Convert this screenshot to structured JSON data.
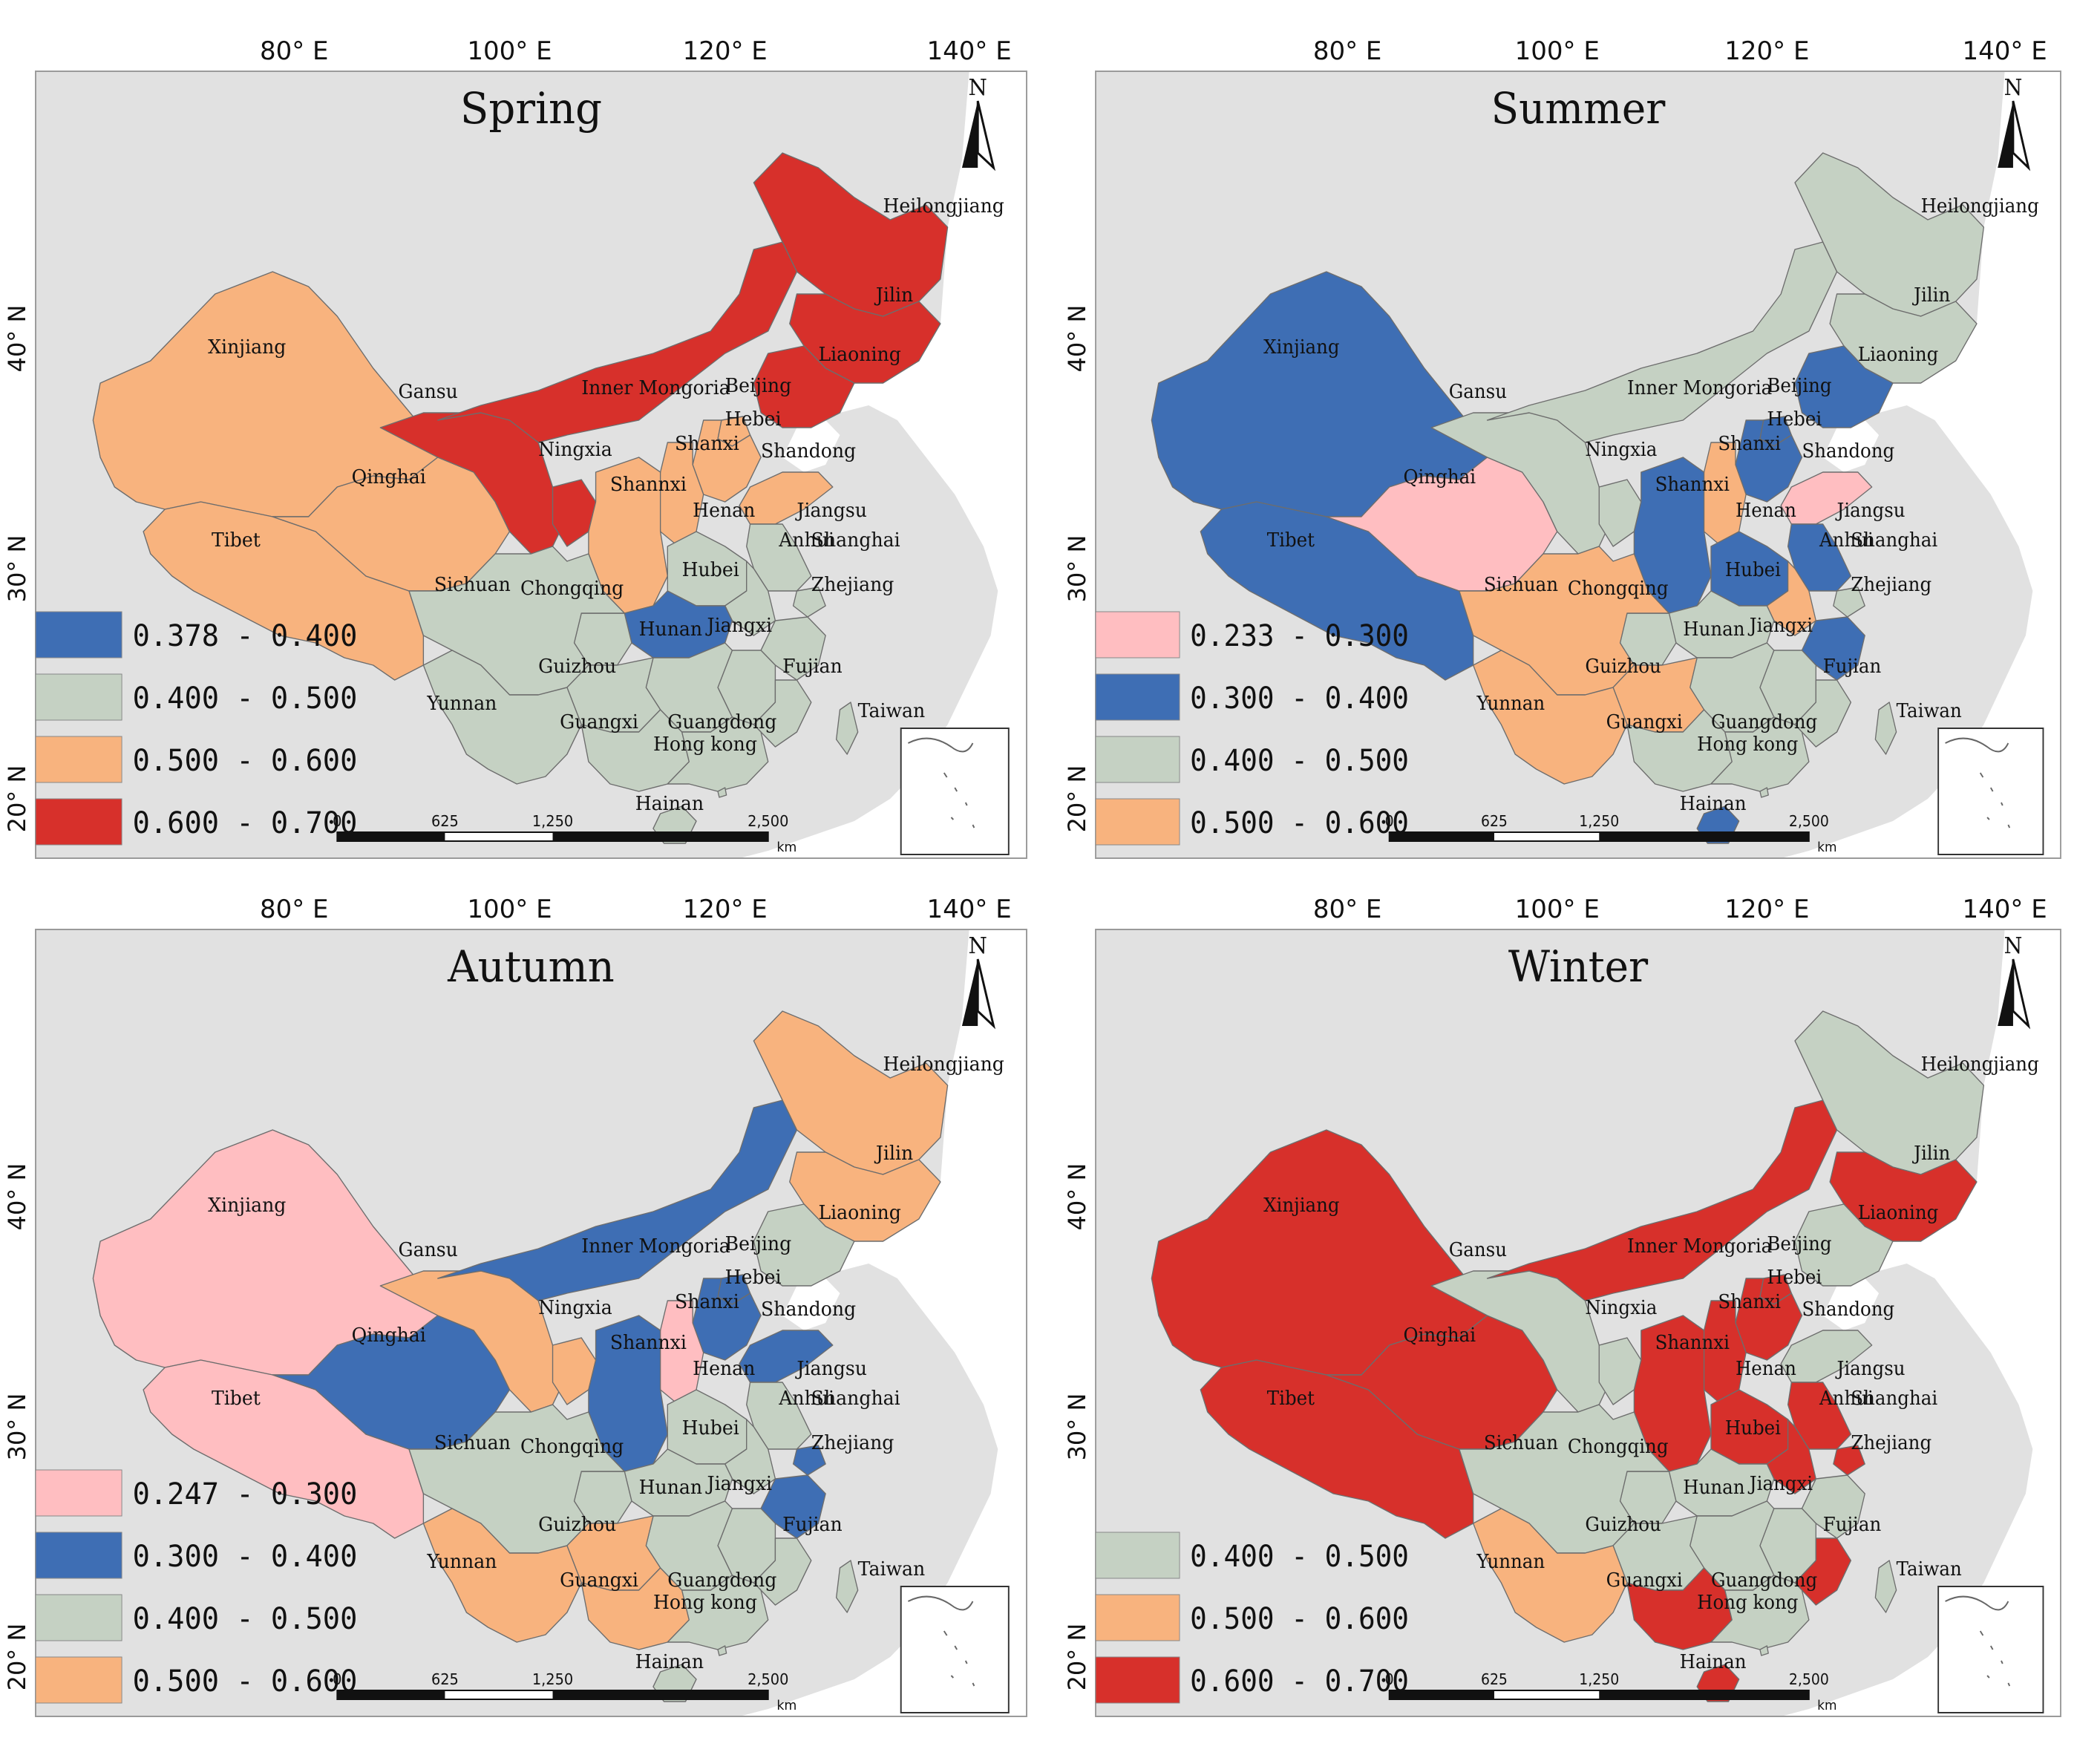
{
  "coords": {
    "lon_labels": [
      "80° E",
      "100° E",
      "120° E",
      "140° E"
    ],
    "lat_labels": [
      "40° N",
      "30° N",
      "20° N"
    ]
  },
  "north_label": "N",
  "scalebar": {
    "ticks": [
      "0",
      "625",
      "1,250",
      "2,500"
    ],
    "unit": "km"
  },
  "labels_common": [
    "Heilongjiang",
    "Jilin",
    "Liaoning",
    "Xinjiang",
    "Inner Mongoria",
    "Gansu",
    "Beijing",
    "Hebei",
    "Ningxia",
    "Shanxi",
    "Shandong",
    "Qinghai",
    "Shannxi",
    "Henan",
    "Jiangsu",
    "Anhui",
    "Shanghai",
    "Tibet",
    "Hubei",
    "Sichuan",
    "Chongqing",
    "Zhejiang",
    "Hunan",
    "Jiangxi",
    "Guizhou",
    "Fujian",
    "Yunnan",
    "Guangxi",
    "Guangdong",
    "Taiwan",
    "Hong kong",
    "Hainan"
  ],
  "colors": {
    "pink": "#FFBEC1",
    "blue": "#3E6EB4",
    "sage": "#C5D1C3",
    "orange": "#F8B37E",
    "red": "#D7302B",
    "background_land": "#E1E1E1"
  },
  "panels": [
    {
      "season": "Spring",
      "legend": [
        {
          "color": "blue",
          "range": "0.378 - 0.400"
        },
        {
          "color": "sage",
          "range": "0.400 - 0.500"
        },
        {
          "color": "orange",
          "range": "0.500 - 0.600"
        },
        {
          "color": "red",
          "range": "0.600 - 0.700"
        }
      ],
      "classes": {
        "Heilongjiang": "red",
        "Jilin": "red",
        "Liaoning": "red",
        "Inner Mongoria": "red",
        "Gansu": "red",
        "Ningxia": "red",
        "Xinjiang": "orange",
        "Qinghai": "orange",
        "Tibet": "orange",
        "Beijing": "orange",
        "Hebei": "orange",
        "Shanxi": "orange",
        "Shandong": "orange",
        "Shannxi": "orange",
        "Hubei": "blue",
        "Henan": "sage",
        "Jiangsu": "sage",
        "Anhui": "sage",
        "Shanghai": "sage",
        "Sichuan": "sage",
        "Chongqing": "sage",
        "Zhejiang": "sage",
        "Hunan": "sage",
        "Jiangxi": "sage",
        "Guizhou": "sage",
        "Fujian": "sage",
        "Yunnan": "sage",
        "Guangxi": "sage",
        "Guangdong": "sage",
        "Hainan": "sage",
        "Taiwan": "sage",
        "Hong kong": "sage"
      }
    },
    {
      "season": "Summer",
      "legend": [
        {
          "color": "pink",
          "range": "0.233 - 0.300"
        },
        {
          "color": "blue",
          "range": "0.300 - 0.400"
        },
        {
          "color": "sage",
          "range": "0.400 - 0.500"
        },
        {
          "color": "orange",
          "range": "0.500 - 0.600"
        }
      ],
      "classes": {
        "Qinghai": "pink",
        "Shandong": "pink",
        "Xinjiang": "blue",
        "Tibet": "blue",
        "Liaoning": "blue",
        "Hebei": "blue",
        "Beijing": "blue",
        "Shannxi": "blue",
        "Henan": "blue",
        "Zhejiang": "blue",
        "Hainan": "blue",
        "Jiangsu": "blue",
        "Heilongjiang": "sage",
        "Jilin": "sage",
        "Inner Mongoria": "sage",
        "Gansu": "sage",
        "Ningxia": "sage",
        "Hubei": "sage",
        "Hunan": "sage",
        "Jiangxi": "sage",
        "Fujian": "sage",
        "Guangxi": "sage",
        "Guangdong": "sage",
        "Chongqing": "sage",
        "Shanghai": "sage",
        "Taiwan": "sage",
        "Hong kong": "sage",
        "Shanxi": "orange",
        "Sichuan": "orange",
        "Yunnan": "orange",
        "Guizhou": "orange",
        "Anhui": "orange"
      }
    },
    {
      "season": "Autumn",
      "legend": [
        {
          "color": "pink",
          "range": "0.247 - 0.300"
        },
        {
          "color": "blue",
          "range": "0.300 - 0.400"
        },
        {
          "color": "sage",
          "range": "0.400 - 0.500"
        },
        {
          "color": "orange",
          "range": "0.500 - 0.600"
        }
      ],
      "classes": {
        "Xinjiang": "pink",
        "Tibet": "pink",
        "Shanxi": "pink",
        "Inner Mongoria": "blue",
        "Qinghai": "blue",
        "Shannxi": "blue",
        "Hebei": "blue",
        "Shandong": "blue",
        "Beijing": "blue",
        "Zhejiang": "blue",
        "Shanghai": "blue",
        "Liaoning": "sage",
        "Henan": "sage",
        "Jiangsu": "sage",
        "Anhui": "sage",
        "Hubei": "sage",
        "Sichuan": "sage",
        "Chongqing": "sage",
        "Hunan": "sage",
        "Jiangxi": "sage",
        "Fujian": "sage",
        "Guangdong": "sage",
        "Hainan": "sage",
        "Taiwan": "sage",
        "Hong kong": "sage",
        "Heilongjiang": "orange",
        "Jilin": "orange",
        "Gansu": "orange",
        "Ningxia": "orange",
        "Guizhou": "orange",
        "Yunnan": "orange",
        "Guangxi": "orange"
      }
    },
    {
      "season": "Winter",
      "legend": [
        {
          "color": "sage",
          "range": "0.400 - 0.500"
        },
        {
          "color": "orange",
          "range": "0.500 - 0.600"
        },
        {
          "color": "red",
          "range": "0.600 - 0.700"
        }
      ],
      "classes": {
        "Xinjiang": "red",
        "Tibet": "red",
        "Qinghai": "red",
        "Inner Mongoria": "red",
        "Jilin": "red",
        "Beijing": "red",
        "Hebei": "red",
        "Shanxi": "red",
        "Shannxi": "red",
        "Henan": "red",
        "Jiangsu": "red",
        "Anhui": "red",
        "Shanghai": "red",
        "Fujian": "red",
        "Guangxi": "red",
        "Hainan": "red",
        "Heilongjiang": "sage",
        "Liaoning": "sage",
        "Gansu": "sage",
        "Ningxia": "sage",
        "Shandong": "sage",
        "Hubei": "sage",
        "Sichuan": "sage",
        "Chongqing": "sage",
        "Zhejiang": "sage",
        "Hunan": "sage",
        "Jiangxi": "sage",
        "Guizhou": "sage",
        "Guangdong": "sage",
        "Taiwan": "sage",
        "Hong kong": "sage",
        "Yunnan": "orange"
      }
    }
  ]
}
